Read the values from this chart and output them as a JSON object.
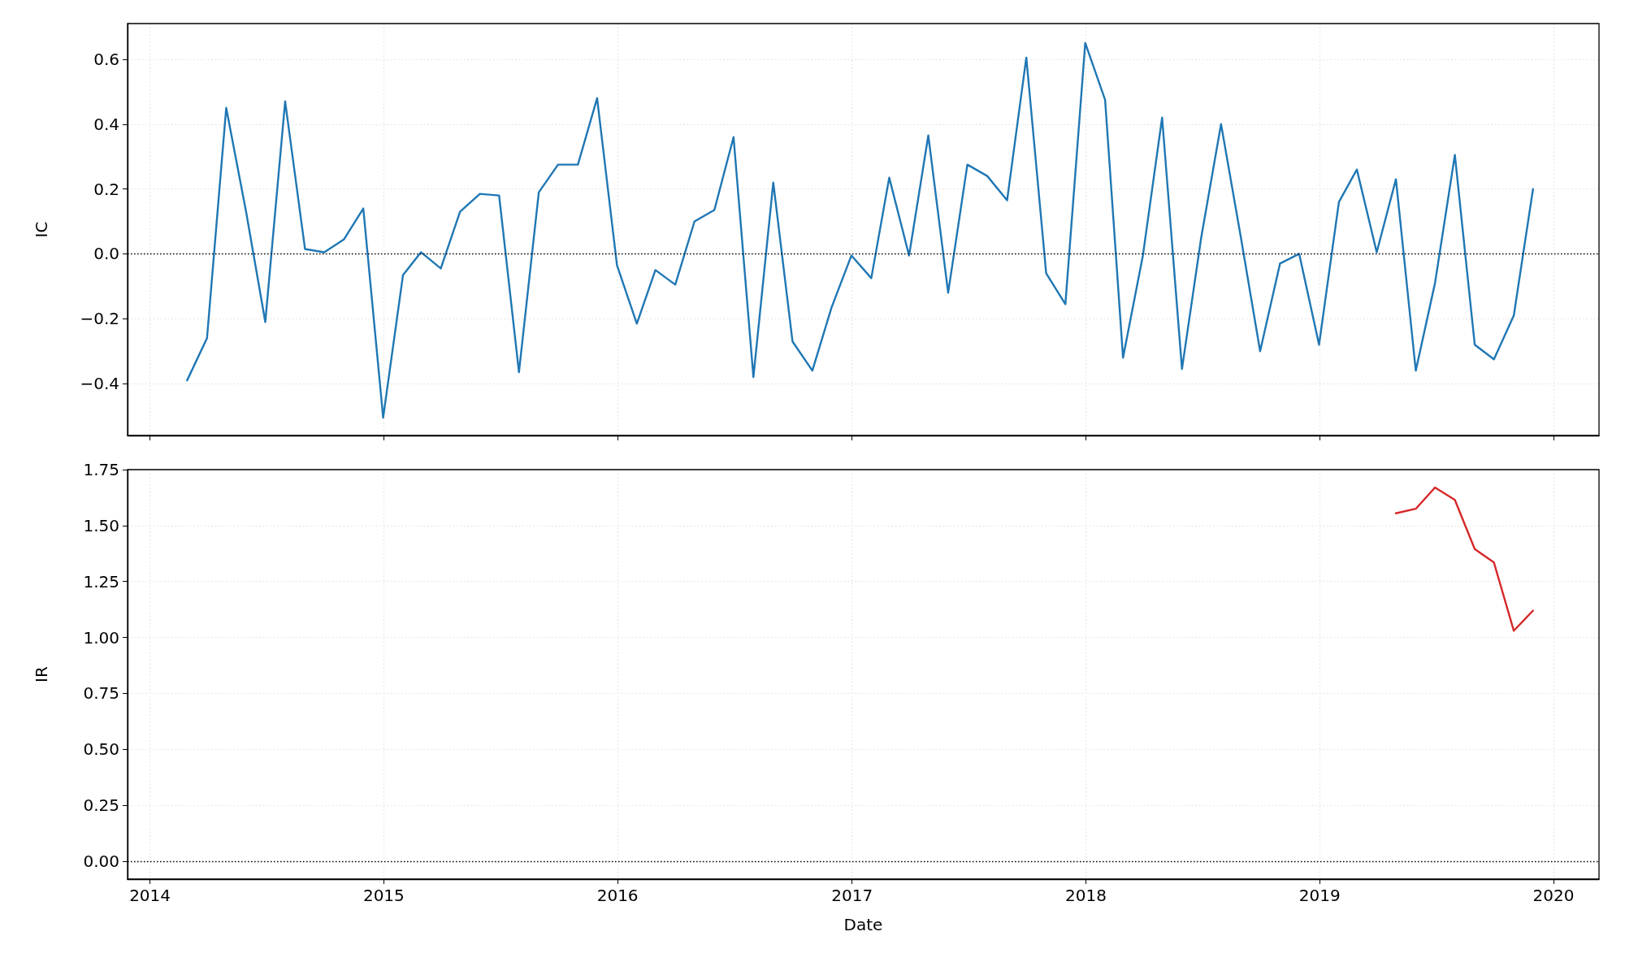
{
  "chart_data": [
    {
      "type": "line",
      "ylabel": "IC",
      "x": [
        "2014-02-28",
        "2014-03-31",
        "2014-04-30",
        "2014-05-31",
        "2014-06-30",
        "2014-07-31",
        "2014-08-31",
        "2014-09-30",
        "2014-10-31",
        "2014-11-30",
        "2014-12-31",
        "2015-01-31",
        "2015-02-28",
        "2015-03-31",
        "2015-04-30",
        "2015-05-31",
        "2015-06-30",
        "2015-07-31",
        "2015-08-31",
        "2015-09-30",
        "2015-10-31",
        "2015-11-30",
        "2015-12-31",
        "2016-01-31",
        "2016-02-29",
        "2016-03-31",
        "2016-04-30",
        "2016-05-31",
        "2016-06-30",
        "2016-07-31",
        "2016-08-31",
        "2016-09-30",
        "2016-10-31",
        "2016-11-30",
        "2016-12-31",
        "2017-01-31",
        "2017-02-28",
        "2017-03-31",
        "2017-04-30",
        "2017-05-31",
        "2017-06-30",
        "2017-07-31",
        "2017-08-31",
        "2017-09-30",
        "2017-10-31",
        "2017-11-30",
        "2017-12-31",
        "2018-01-31",
        "2018-02-28",
        "2018-03-31",
        "2018-04-30",
        "2018-05-31",
        "2018-06-30",
        "2018-07-31",
        "2018-08-31",
        "2018-09-30",
        "2018-10-31",
        "2018-11-30",
        "2018-12-31",
        "2019-01-31",
        "2019-02-28",
        "2019-03-31",
        "2019-04-30",
        "2019-05-31",
        "2019-06-30",
        "2019-07-31",
        "2019-08-31",
        "2019-09-30",
        "2019-10-31",
        "2019-11-30"
      ],
      "series": [
        {
          "color": "#1f77b4",
          "values": [
            -0.39,
            -0.26,
            0.45,
            0.13,
            -0.21,
            0.47,
            0.015,
            0.005,
            0.045,
            0.14,
            -0.505,
            -0.065,
            0.005,
            -0.045,
            0.13,
            0.185,
            0.18,
            -0.365,
            0.19,
            0.275,
            0.275,
            0.48,
            -0.035,
            -0.215,
            -0.05,
            -0.095,
            0.1,
            0.135,
            0.36,
            -0.38,
            0.22,
            -0.27,
            -0.36,
            -0.165,
            -0.005,
            -0.075,
            0.235,
            -0.005,
            0.365,
            -0.12,
            0.275,
            0.24,
            0.165,
            0.605,
            -0.06,
            -0.155,
            0.65,
            0.475,
            -0.32,
            -0.005,
            0.42,
            -0.355,
            0.05,
            0.4,
            0.05,
            -0.3,
            -0.03,
            0.0,
            -0.28,
            0.16,
            0.26,
            0.005,
            0.23,
            -0.36,
            -0.09,
            0.305,
            -0.28,
            -0.325,
            -0.19,
            0.2
          ]
        }
      ],
      "xlim": [
        "2013-11-27",
        "2020-03-12"
      ],
      "xticks": [
        {
          "value": "2014-01-01",
          "label": null
        },
        {
          "value": "2015-01-01",
          "label": null
        },
        {
          "value": "2016-01-01",
          "label": null
        },
        {
          "value": "2017-01-01",
          "label": null
        },
        {
          "value": "2018-01-01",
          "label": null
        },
        {
          "value": "2019-01-01",
          "label": null
        },
        {
          "value": "2020-01-01",
          "label": null
        }
      ],
      "ylim": [
        -0.56,
        0.71
      ],
      "yticks": [
        {
          "value": -0.4,
          "label": "−0.4"
        },
        {
          "value": -0.2,
          "label": "−0.2"
        },
        {
          "value": 0,
          "label": "0.0"
        },
        {
          "value": 0.2,
          "label": "0.2"
        },
        {
          "value": 0.4,
          "label": "0.4"
        },
        {
          "value": 0.6,
          "label": "0.6"
        }
      ],
      "ref_lines": [
        {
          "axis": "y",
          "value": 0,
          "color": "#000000",
          "line_style": "dotted"
        }
      ],
      "grid": true,
      "tick_labels": "y"
    },
    {
      "type": "line",
      "ylabel": "IR",
      "xlabel": "Date",
      "x": [
        "2019-04-30",
        "2019-05-31",
        "2019-06-30",
        "2019-07-31",
        "2019-08-31",
        "2019-09-30",
        "2019-10-31",
        "2019-11-30"
      ],
      "series": [
        {
          "color": "#d62728",
          "values": [
            1.555,
            1.575,
            1.67,
            1.615,
            1.395,
            1.335,
            1.03,
            1.12
          ]
        }
      ],
      "xlim": [
        "2013-11-27",
        "2020-03-12"
      ],
      "xticks": [
        {
          "value": "2014-01-01",
          "label": "2014"
        },
        {
          "value": "2015-01-01",
          "label": "2015"
        },
        {
          "value": "2016-01-01",
          "label": "2016"
        },
        {
          "value": "2017-01-01",
          "label": "2017"
        },
        {
          "value": "2018-01-01",
          "label": "2018"
        },
        {
          "value": "2019-01-01",
          "label": "2019"
        },
        {
          "value": "2020-01-01",
          "label": "2020"
        }
      ],
      "ylim": [
        -0.08,
        1.75
      ],
      "yticks": [
        {
          "value": 0,
          "label": "0.00"
        },
        {
          "value": 0.25,
          "label": "0.25"
        },
        {
          "value": 0.5,
          "label": "0.50"
        },
        {
          "value": 0.75,
          "label": "0.75"
        },
        {
          "value": 1,
          "label": "1.00"
        },
        {
          "value": 1.25,
          "label": "1.25"
        },
        {
          "value": 1.5,
          "label": "1.50"
        },
        {
          "value": 1.75,
          "label": "1.75"
        }
      ],
      "ref_lines": [
        {
          "axis": "y",
          "value": 0,
          "color": "#000000",
          "line_style": "dotted"
        }
      ],
      "grid": true
    }
  ]
}
